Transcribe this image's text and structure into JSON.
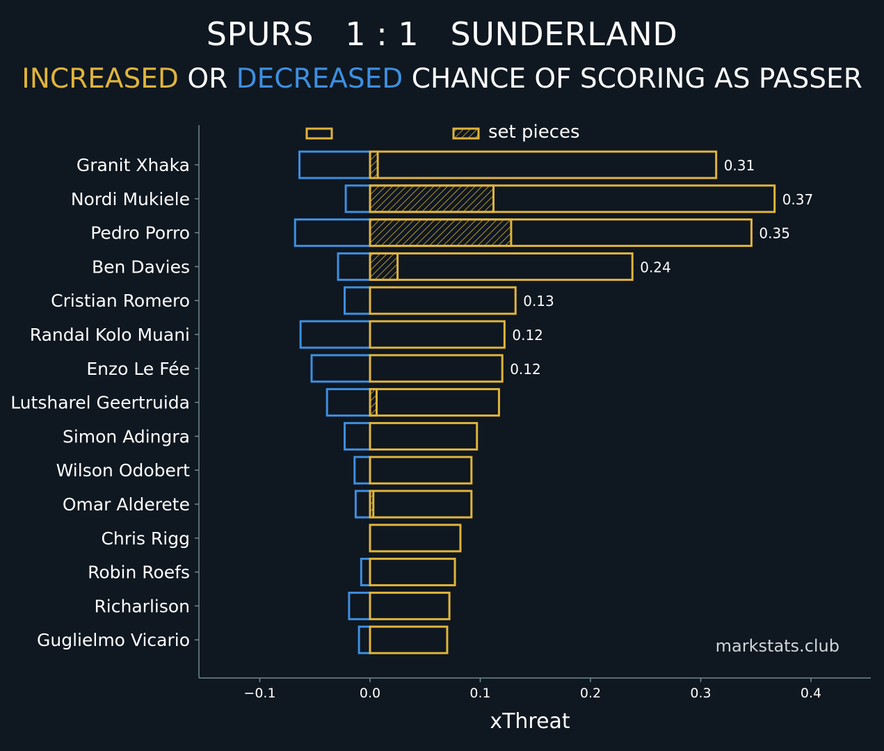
{
  "header": {
    "title": "SPURS   1 : 1   SUNDERLAND",
    "subtitle_increased": "INCREASED",
    "subtitle_or": " OR ",
    "subtitle_decreased": "DECREASED",
    "subtitle_rest": " CHANCE OF SCORING AS PASSER"
  },
  "colors": {
    "background": "#0f1720",
    "increased": "#e0b43c",
    "decreased": "#3d8fe0",
    "axis": "#6f8a92",
    "text": "#ffffff",
    "watermark": "#cfd6da"
  },
  "watermark": "markstats.club",
  "chart_data": {
    "type": "bar",
    "orientation": "horizontal",
    "xlabel": "xThreat",
    "xlim": [
      -0.1,
      0.45
    ],
    "xticks": [
      -0.1,
      0.0,
      0.1,
      0.2,
      0.3,
      0.4
    ],
    "xtick_labels": [
      "−0.1",
      "0.0",
      "0.1",
      "0.2",
      "0.3",
      "0.4"
    ],
    "legend": {
      "placement": "top",
      "entries": [
        {
          "label": "",
          "style": "outline"
        },
        {
          "label": "set pieces",
          "style": "hatched"
        }
      ]
    },
    "categories": [
      "Granit Xhaka",
      "Nordi Mukiele",
      "Pedro Porro",
      "Ben Davies",
      "Cristian Romero",
      "Randal Kolo Muani",
      "Enzo Le Fée",
      "Lutsharel Geertruida",
      "Simon Adingra",
      "Wilson Odobert",
      "Omar Alderete",
      "Chris Rigg",
      "Robin Roefs",
      "Richarlison",
      "Guglielmo Vicario"
    ],
    "series": [
      {
        "name": "increased",
        "values": [
          0.314,
          0.367,
          0.346,
          0.238,
          0.132,
          0.122,
          0.12,
          0.117,
          0.097,
          0.092,
          0.092,
          0.082,
          0.077,
          0.072,
          0.07
        ]
      },
      {
        "name": "set pieces",
        "values": [
          0.007,
          0.112,
          0.128,
          0.025,
          0,
          0,
          0,
          0.006,
          0,
          0,
          0.003,
          0,
          0,
          0,
          0
        ]
      },
      {
        "name": "decreased",
        "values": [
          -0.064,
          -0.022,
          -0.068,
          -0.029,
          -0.023,
          -0.063,
          -0.053,
          -0.039,
          -0.023,
          -0.014,
          -0.013,
          0,
          -0.008,
          -0.019,
          -0.01
        ]
      }
    ],
    "data_labels": [
      "0.31",
      "0.37",
      "0.35",
      "0.24",
      "0.13",
      "0.12",
      "0.12",
      null,
      null,
      null,
      null,
      null,
      null,
      null,
      null
    ]
  }
}
